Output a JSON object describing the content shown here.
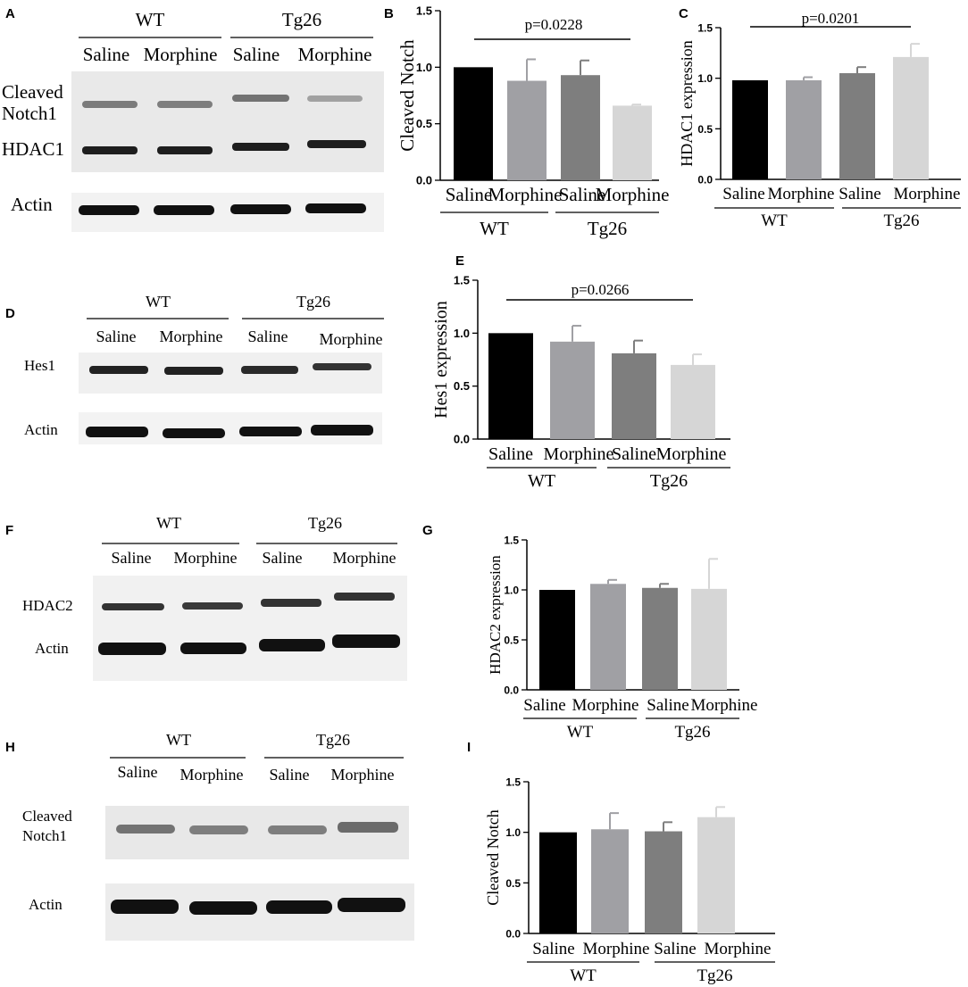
{
  "colors": {
    "wt_saline": "#000000",
    "wt_morphine": "#a0a0a4",
    "tg26_saline": "#7e7e7e",
    "tg26_morphine": "#d6d6d6",
    "blot_background": "#e9e9e9",
    "band": "#1e1e1e"
  },
  "blots": [
    {
      "panel": "A",
      "groups": [
        "WT",
        "Tg26"
      ],
      "lanes": [
        "Saline",
        "Morphine",
        "Saline",
        "Morphine"
      ],
      "rows": [
        {
          "label_lines": [
            "Cleaved",
            "Notch1"
          ]
        },
        {
          "label_lines": [
            "HDAC1"
          ]
        },
        {
          "label_lines": [
            "Actin"
          ]
        }
      ]
    },
    {
      "panel": "D",
      "groups": [
        "WT",
        "Tg26"
      ],
      "lanes": [
        "Saline",
        "Morphine",
        "Saline",
        "Morphine"
      ],
      "rows": [
        {
          "label_lines": [
            "Hes1"
          ]
        },
        {
          "label_lines": [
            "Actin"
          ]
        }
      ]
    },
    {
      "panel": "F",
      "groups": [
        "WT",
        "Tg26"
      ],
      "lanes": [
        "Saline",
        "Morphine",
        "Saline",
        "Morphine"
      ],
      "rows": [
        {
          "label_lines": [
            "HDAC2"
          ]
        },
        {
          "label_lines": [
            "Actin"
          ]
        }
      ]
    },
    {
      "panel": "H",
      "groups": [
        "WT",
        "Tg26"
      ],
      "lanes": [
        "Saline",
        "Morphine",
        "Saline",
        "Morphine"
      ],
      "rows": [
        {
          "label_lines": [
            "Cleaved",
            "Notch1"
          ]
        },
        {
          "label_lines": [
            "Actin"
          ]
        }
      ]
    }
  ],
  "chart_data": [
    {
      "panel": "B",
      "type": "bar",
      "categories": [
        "Saline",
        "Morphine",
        "Saline",
        "Morphine"
      ],
      "groups": [
        "WT",
        "Tg26"
      ],
      "values": [
        1.0,
        0.88,
        0.93,
        0.66
      ],
      "errors": [
        0,
        0.19,
        0.13,
        0.01
      ],
      "ylabel": "Cleaved Notch",
      "ylim": [
        0,
        1.5
      ],
      "yticks": [
        "0.0",
        "0.5",
        "1.0",
        "1.5"
      ],
      "annotation": "p=0.0228"
    },
    {
      "panel": "C",
      "type": "bar",
      "categories": [
        "Saline",
        "Morphine",
        "Saline",
        "Morphine"
      ],
      "groups": [
        "WT",
        "Tg26"
      ],
      "values": [
        0.98,
        0.98,
        1.05,
        1.21
      ],
      "errors": [
        0,
        0.03,
        0.06,
        0.13
      ],
      "ylabel": "HDAC1 expression",
      "ylim": [
        0,
        1.5
      ],
      "yticks": [
        "0.0",
        "0.5",
        "1.0",
        "1.5"
      ],
      "annotation": "p=0.0201"
    },
    {
      "panel": "E",
      "type": "bar",
      "categories": [
        "Saline",
        "Morphine",
        "Saline",
        "Morphine"
      ],
      "groups": [
        "WT",
        "Tg26"
      ],
      "values": [
        1.0,
        0.92,
        0.81,
        0.7
      ],
      "errors": [
        0,
        0.15,
        0.12,
        0.1
      ],
      "ylabel": "Hes1 expression",
      "ylim": [
        0,
        1.5
      ],
      "yticks": [
        "0.0",
        "0.5",
        "1.0",
        "1.5"
      ],
      "annotation": "p=0.0266"
    },
    {
      "panel": "G",
      "type": "bar",
      "categories": [
        "Saline",
        "Morphine",
        "Saline",
        "Morphine"
      ],
      "groups": [
        "WT",
        "Tg26"
      ],
      "values": [
        1.0,
        1.06,
        1.02,
        1.01
      ],
      "errors": [
        0,
        0.04,
        0.04,
        0.3
      ],
      "ylabel": "HDAC2 expression",
      "ylim": [
        0,
        1.5
      ],
      "yticks": [
        "0.0",
        "0.5",
        "1.0",
        "1.5"
      ],
      "annotation": ""
    },
    {
      "panel": "I",
      "type": "bar",
      "categories": [
        "Saline",
        "Morphine",
        "Saline",
        "Morphine"
      ],
      "groups": [
        "WT",
        "Tg26"
      ],
      "values": [
        1.0,
        1.03,
        1.01,
        1.15
      ],
      "errors": [
        0,
        0.16,
        0.09,
        0.1
      ],
      "ylabel": "Cleaved Notch",
      "ylim": [
        0,
        1.5
      ],
      "yticks": [
        "0.0",
        "0.5",
        "1.0",
        "1.5"
      ],
      "annotation": ""
    }
  ]
}
